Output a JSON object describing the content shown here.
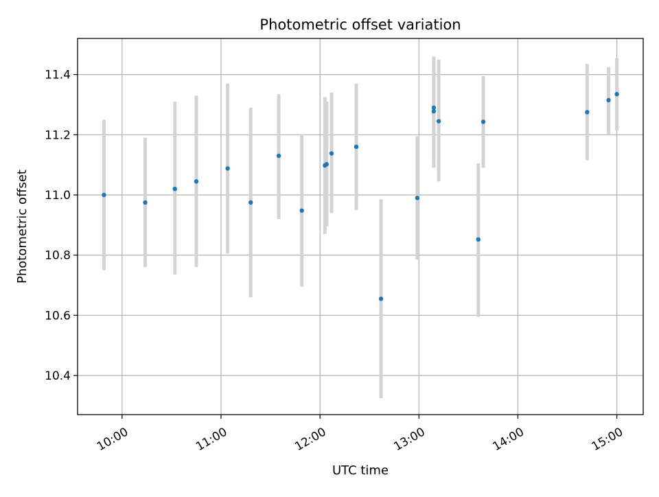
{
  "chart_data": {
    "type": "scatter",
    "title": "Photometric offset variation",
    "xlabel": "UTC time",
    "ylabel": "Photometric offset",
    "x_axis_format": "time HH:MM",
    "xlim": [
      "09:33",
      "15:16"
    ],
    "ylim": [
      10.27,
      11.52
    ],
    "x_ticks": [
      "10:00",
      "11:00",
      "12:00",
      "13:00",
      "14:00",
      "15:00"
    ],
    "y_ticks": [
      "10.4",
      "10.6",
      "10.8",
      "11.0",
      "11.2",
      "11.4"
    ],
    "grid": true,
    "legend": "none",
    "marker_color": "#1f77b4",
    "errorbar_color": "#d3d3d3",
    "series": [
      {
        "points": [
          {
            "x": "09:49",
            "y": 11.0,
            "yerr_low": 10.75,
            "yerr_high": 11.25
          },
          {
            "x": "10:14",
            "y": 10.975,
            "yerr_low": 10.76,
            "yerr_high": 11.19
          },
          {
            "x": "10:32",
            "y": 11.02,
            "yerr_low": 10.735,
            "yerr_high": 11.31
          },
          {
            "x": "10:45",
            "y": 11.045,
            "yerr_low": 10.76,
            "yerr_high": 11.33
          },
          {
            "x": "11:04",
            "y": 11.088,
            "yerr_low": 10.805,
            "yerr_high": 11.37
          },
          {
            "x": "11:18",
            "y": 10.975,
            "yerr_low": 10.66,
            "yerr_high": 11.29
          },
          {
            "x": "11:35",
            "y": 11.13,
            "yerr_low": 10.92,
            "yerr_high": 11.335
          },
          {
            "x": "11:49",
            "y": 10.948,
            "yerr_low": 10.695,
            "yerr_high": 11.2
          },
          {
            "x": "12:03",
            "y": 11.098,
            "yerr_low": 10.87,
            "yerr_high": 11.325
          },
          {
            "x": "12:04",
            "y": 11.102,
            "yerr_low": 10.895,
            "yerr_high": 11.31
          },
          {
            "x": "12:07",
            "y": 11.138,
            "yerr_low": 10.94,
            "yerr_high": 11.34
          },
          {
            "x": "12:22",
            "y": 11.16,
            "yerr_low": 10.95,
            "yerr_high": 11.37
          },
          {
            "x": "12:37",
            "y": 10.655,
            "yerr_low": 10.325,
            "yerr_high": 10.985
          },
          {
            "x": "12:59",
            "y": 10.99,
            "yerr_low": 10.785,
            "yerr_high": 11.195
          },
          {
            "x": "13:09",
            "y": 11.278,
            "yerr_low": 11.09,
            "yerr_high": 11.46
          },
          {
            "x": "13:09",
            "y": 11.29,
            "yerr_low": 11.13,
            "yerr_high": 11.45
          },
          {
            "x": "13:12",
            "y": 11.245,
            "yerr_low": 11.045,
            "yerr_high": 11.45
          },
          {
            "x": "13:36",
            "y": 10.852,
            "yerr_low": 10.595,
            "yerr_high": 11.105
          },
          {
            "x": "13:39",
            "y": 11.243,
            "yerr_low": 11.09,
            "yerr_high": 11.395
          },
          {
            "x": "14:42",
            "y": 11.275,
            "yerr_low": 11.115,
            "yerr_high": 11.435
          },
          {
            "x": "14:55",
            "y": 11.315,
            "yerr_low": 11.2,
            "yerr_high": 11.425
          },
          {
            "x": "15:00",
            "y": 11.335,
            "yerr_low": 11.215,
            "yerr_high": 11.455
          }
        ]
      }
    ]
  }
}
